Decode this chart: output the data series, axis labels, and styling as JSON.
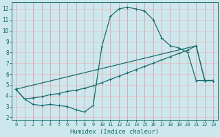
{
  "xlabel": "Humidex (Indice chaleur)",
  "bg_color": "#cce8ec",
  "grid_color_v": "#e8a0a8",
  "grid_color_h": "#e8c8cc",
  "line_color": "#1a6b6b",
  "xlim": [
    -0.5,
    23.5
  ],
  "ylim": [
    1.8,
    12.6
  ],
  "xticks": [
    0,
    1,
    2,
    3,
    4,
    5,
    6,
    7,
    8,
    9,
    10,
    11,
    12,
    13,
    14,
    15,
    16,
    17,
    18,
    19,
    20,
    21,
    22,
    23
  ],
  "yticks": [
    2,
    3,
    4,
    5,
    6,
    7,
    8,
    9,
    10,
    11,
    12
  ],
  "curve1_x": [
    0,
    1,
    2,
    3,
    4,
    5,
    6,
    7,
    8,
    9,
    10,
    11,
    12,
    13,
    14,
    15,
    16,
    17,
    18,
    19,
    20,
    21,
    22,
    23
  ],
  "curve1_y": [
    4.6,
    3.7,
    3.2,
    3.1,
    3.2,
    3.1,
    3.0,
    2.7,
    2.5,
    3.1,
    8.5,
    11.3,
    12.0,
    12.15,
    12.0,
    11.8,
    11.0,
    9.3,
    8.6,
    8.4,
    8.0,
    5.4,
    5.4,
    5.4
  ],
  "curve2_x": [
    0,
    1,
    2,
    3,
    4,
    5,
    6,
    7,
    8,
    9,
    10,
    11,
    12,
    13,
    14,
    15,
    16,
    17,
    18,
    19,
    20,
    21,
    22,
    23
  ],
  "curve2_y": [
    4.6,
    3.7,
    3.8,
    3.9,
    4.1,
    4.2,
    4.4,
    4.5,
    4.7,
    4.9,
    5.2,
    5.5,
    5.8,
    6.1,
    6.4,
    6.7,
    7.0,
    7.3,
    7.6,
    7.9,
    8.2,
    8.6,
    5.4,
    5.4
  ],
  "curve3_x": [
    0,
    21,
    22,
    23
  ],
  "curve3_y": [
    4.6,
    8.6,
    5.4,
    5.4
  ]
}
